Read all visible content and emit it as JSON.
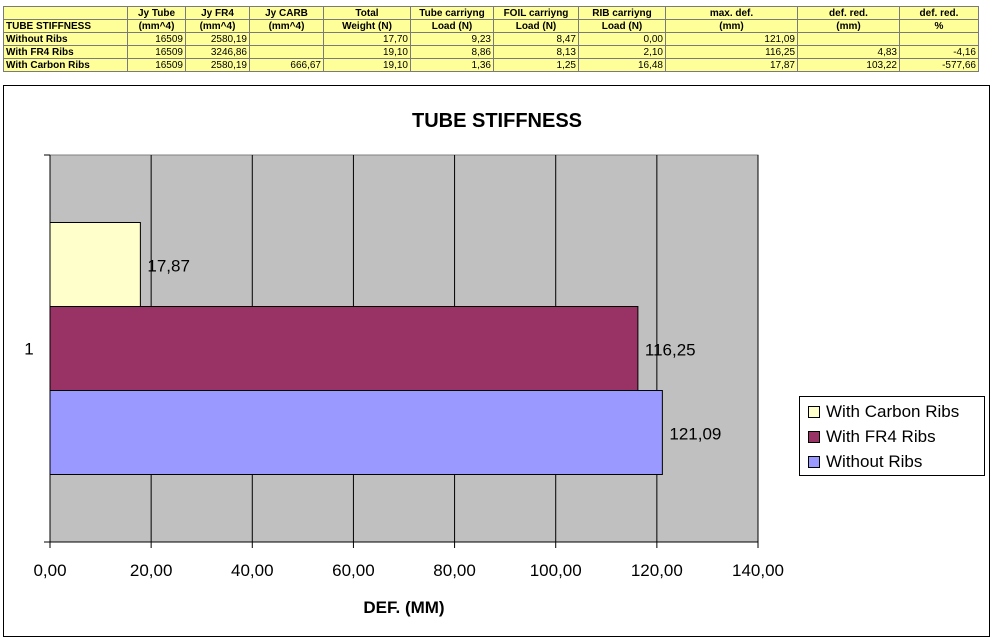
{
  "sheet": {
    "header_row1": [
      "",
      "Jy Tube",
      "Jy FR4",
      "Jy CARB",
      "Total",
      "Tube carriyng",
      "FOIL carriyng",
      "RIB carriyng",
      "max. def.",
      "def. red.",
      "def. red."
    ],
    "header_row2": [
      "TUBE STIFFNESS",
      "(mm^4)",
      "(mm^4)",
      "(mm^4)",
      "Weight (N)",
      "Load (N)",
      "Load (N)",
      "Load (N)",
      "(mm)",
      "(mm)",
      "%"
    ],
    "rows": [
      [
        "Without Ribs",
        "16509",
        "2580,19",
        "",
        "17,70",
        "9,23",
        "8,47",
        "0,00",
        "121,09",
        "",
        ""
      ],
      [
        "With FR4 Ribs",
        "16509",
        "3246,86",
        "",
        "19,10",
        "8,86",
        "8,13",
        "2,10",
        "116,25",
        "4,83",
        "-4,16"
      ],
      [
        "With Carbon Ribs",
        "16509",
        "2580,19",
        "666,67",
        "19,10",
        "1,36",
        "1,25",
        "16,48",
        "17,87",
        "103,22",
        "-577,66"
      ]
    ]
  },
  "chart_data": {
    "type": "bar",
    "orientation": "horizontal",
    "title": "TUBE STIFFNESS",
    "xlabel": "DEF. (MM)",
    "ylabel": "",
    "categories": [
      "1"
    ],
    "xlim": [
      0,
      140
    ],
    "x_ticks": [
      "0,00",
      "20,00",
      "40,00",
      "60,00",
      "80,00",
      "100,00",
      "120,00",
      "140,00"
    ],
    "grid": true,
    "legend_position": "right",
    "series": [
      {
        "name": "With Carbon Ribs",
        "values": [
          17.87
        ],
        "label": "17,87",
        "color": "#ffffcc"
      },
      {
        "name": "With FR4 Ribs",
        "values": [
          116.25
        ],
        "label": "116,25",
        "color": "#993366"
      },
      {
        "name": "Without Ribs",
        "values": [
          121.09
        ],
        "label": "121,09",
        "color": "#9999ff"
      }
    ],
    "plot_background": "#c0c0c0"
  }
}
